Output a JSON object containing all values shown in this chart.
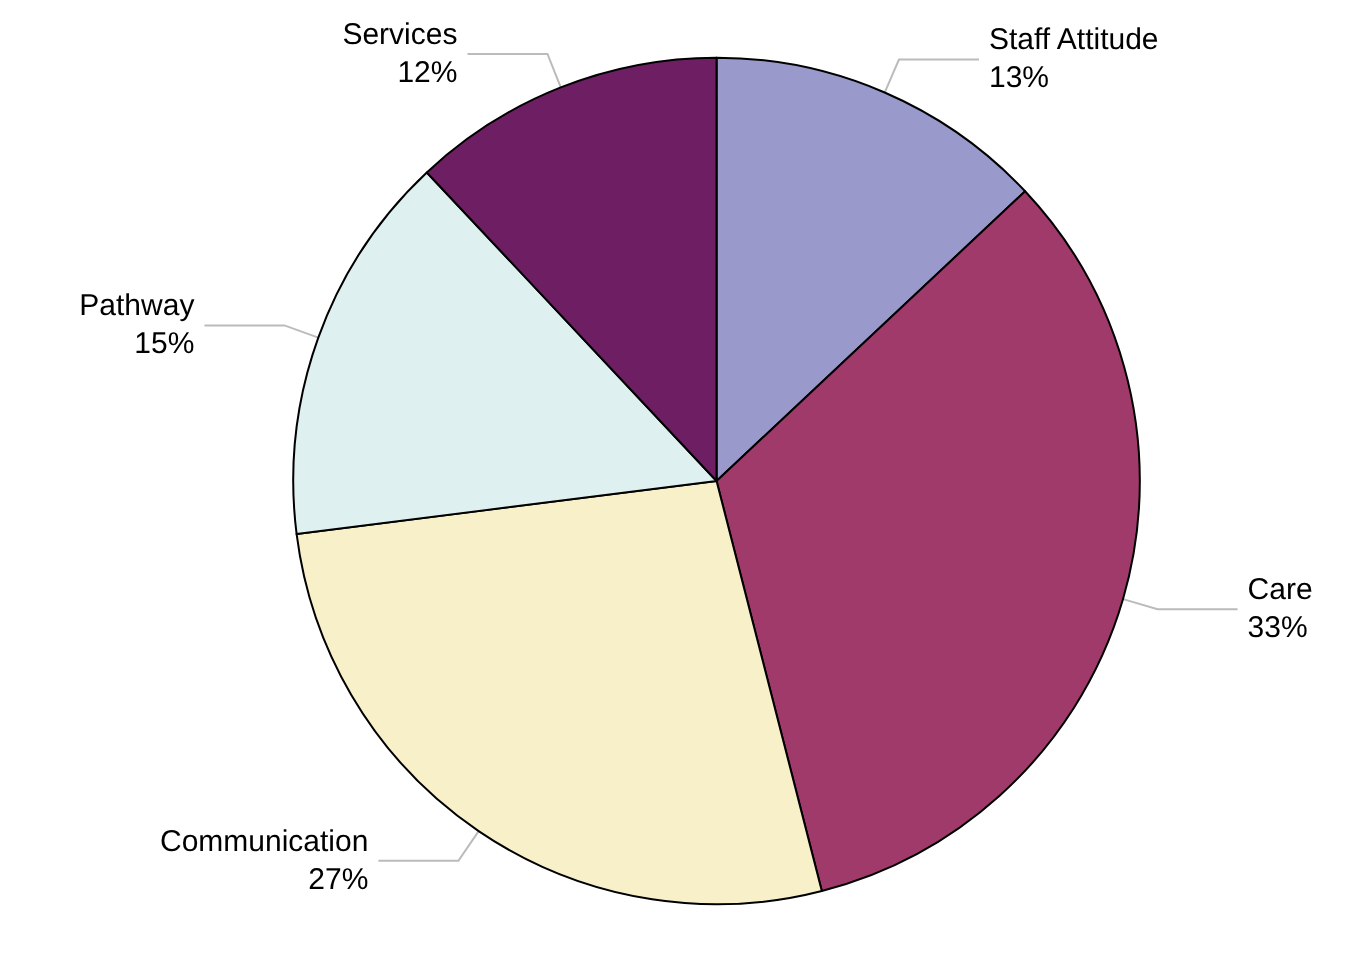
{
  "chart_data": {
    "type": "pie",
    "categories": [
      "Staff Attitude",
      "Care",
      "Communication",
      "Pathway",
      "Services"
    ],
    "values": [
      13,
      33,
      27,
      15,
      12
    ],
    "colors": [
      "#9999cc",
      "#a03a6a",
      "#f8f0c8",
      "#dff0f0",
      "#6e1f63"
    ],
    "value_labels": [
      "13%",
      "33%",
      "27%",
      "15%",
      "12%"
    ],
    "legend": false
  }
}
